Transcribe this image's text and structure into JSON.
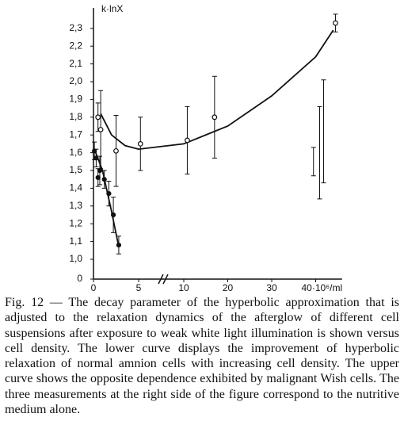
{
  "chart_data": {
    "type": "scatter",
    "y_label": "k·lnX",
    "xlim": [
      0,
      46
    ],
    "ylim": [
      0,
      2.4
    ],
    "x_break": [
      5,
      10
    ],
    "y_break": [
      0,
      1
    ],
    "xticks": [
      0,
      5,
      10,
      20,
      30,
      {
        "value": 40,
        "label": "40·10⁶/ml"
      }
    ],
    "yticks": [
      0,
      {
        "value": 1.0,
        "label": "1,0"
      },
      {
        "value": 1.1,
        "label": "1,1"
      },
      {
        "value": 1.2,
        "label": "1,2"
      },
      {
        "value": 1.3,
        "label": "1,3"
      },
      {
        "value": 1.4,
        "label": "1,4"
      },
      {
        "value": 1.5,
        "label": "1,5"
      },
      {
        "value": 1.6,
        "label": "1,6"
      },
      {
        "value": 1.7,
        "label": "1,7"
      },
      {
        "value": 1.8,
        "label": "1,8"
      },
      {
        "value": 1.9,
        "label": "1,9"
      },
      {
        "value": 2.0,
        "label": "2,0"
      },
      {
        "value": 2.1,
        "label": "2,1"
      },
      {
        "value": 2.2,
        "label": "2,2"
      },
      {
        "value": 2.3,
        "label": "2,3"
      }
    ],
    "series": [
      {
        "marker": "open",
        "color": "#111",
        "x": [
          0.5,
          0.8,
          2.5,
          5.2,
          10.8,
          17,
          44.5
        ],
        "values": [
          1.8,
          1.73,
          1.61,
          1.65,
          1.67,
          1.8,
          2.33
        ],
        "errors": [
          0.08,
          0.22,
          0.2,
          0.15,
          0.19,
          0.23,
          0.05
        ]
      },
      {
        "marker": "filled",
        "color": "#111",
        "x": [
          0.1,
          0.3,
          0.5,
          0.7,
          1.2,
          1.7,
          2.2,
          2.8
        ],
        "values": [
          1.61,
          1.57,
          1.46,
          1.5,
          1.45,
          1.37,
          1.25,
          1.08
        ],
        "errors": [
          0.05,
          0.05,
          0.05,
          0.08,
          0.05,
          0.07,
          0.1,
          0.05
        ]
      },
      {
        "marker": "bar",
        "color": "#111",
        "x": [
          39.5,
          40.9,
          41.8
        ],
        "values": [
          1.55,
          1.6,
          1.72
        ],
        "errors": [
          0.08,
          0.26,
          0.29
        ]
      }
    ],
    "curves": [
      {
        "x": [
          0.8,
          2,
          3.5,
          5,
          10,
          20,
          30,
          40,
          44
        ],
        "values": [
          1.82,
          1.7,
          1.64,
          1.62,
          1.65,
          1.75,
          1.92,
          2.14,
          2.29
        ]
      },
      {
        "x": [
          0.1,
          1,
          2,
          2.8
        ],
        "values": [
          1.62,
          1.5,
          1.27,
          1.07
        ]
      }
    ]
  },
  "caption": "Fig. 12 — The decay parameter of the hyperbolic approximation that is adjusted to the relaxation dynamics of the afterglow of different cell suspensions after exposure to weak white light illumination is shown versus cell density. The lower curve displays the improvement of hyperbolic relaxation of normal amnion cells with increasing cell density. The upper curve shows the opposite dependence exhibited by malignant Wish cells. The three measurements at the right side of the figure correspond to the nutritive medium alone."
}
